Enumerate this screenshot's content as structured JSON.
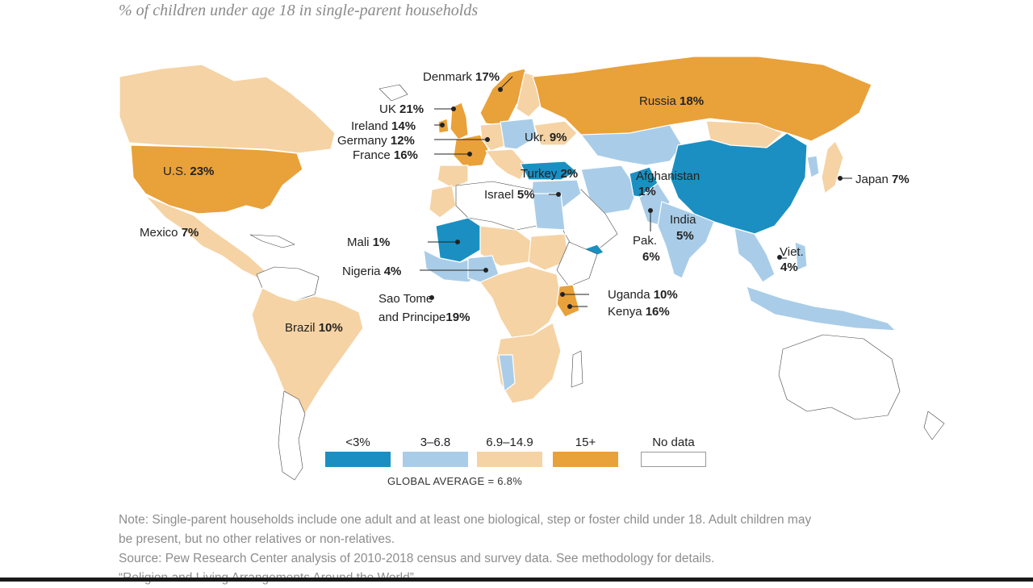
{
  "subtitle": "% of children under age 18 in single-parent households",
  "colors": {
    "lt3": "#1b8fc1",
    "3to6_8": "#a9cde8",
    "6_9to14_9": "#f5d3a4",
    "15plus": "#e9a13a",
    "nodata": "#ffffff",
    "border": "#ffffff"
  },
  "legend": [
    {
      "label": "<3%",
      "color": "#1b8fc1"
    },
    {
      "label": "3–6.8",
      "color": "#a9cde8"
    },
    {
      "label": "6.9–14.9",
      "color": "#f5d3a4"
    },
    {
      "label": "15+",
      "color": "#e9a13a"
    },
    {
      "label": "No data",
      "color": "#ffffff"
    }
  ],
  "global_average": "GLOBAL AVERAGE = 6.8%",
  "labels": {
    "denmark": {
      "name": "Denmark",
      "value": "17%"
    },
    "uk": {
      "name": "UK",
      "value": "21%"
    },
    "ireland": {
      "name": "Ireland",
      "value": "14%"
    },
    "germany": {
      "name": "Germany",
      "value": "12%"
    },
    "france": {
      "name": "France",
      "value": "16%"
    },
    "russia": {
      "name": "Russia",
      "value": "18%"
    },
    "ukraine": {
      "name": "Ukr.",
      "value": "9%"
    },
    "turkey": {
      "name": "Turkey",
      "value": "2%"
    },
    "israel": {
      "name": "Israel",
      "value": "5%"
    },
    "afghanistan": {
      "name": "Afghanistan",
      "value": "1%"
    },
    "japan": {
      "name": "Japan",
      "value": "7%"
    },
    "us": {
      "name": "U.S.",
      "value": "23%"
    },
    "mexico": {
      "name": "Mexico",
      "value": "7%"
    },
    "mali": {
      "name": "Mali",
      "value": "1%"
    },
    "nigeria": {
      "name": "Nigeria",
      "value": "4%"
    },
    "india": {
      "name": "India",
      "value": "5%"
    },
    "pakistan": {
      "name": "Pak.",
      "value": "6%"
    },
    "vietnam": {
      "name": "Viet.",
      "value": "4%"
    },
    "sao_tome": {
      "name_line1": "Sao Tome",
      "name_line2": "and Principe",
      "value": "19%"
    },
    "uganda": {
      "name": "Uganda",
      "value": "10%"
    },
    "kenya": {
      "name": "Kenya",
      "value": "16%"
    },
    "brazil": {
      "name": "Brazil",
      "value": "10%"
    }
  },
  "note_line1": "Note: Single-parent households include one adult and at least one biological, step or foster child under 18. Adult children may",
  "note_line2": "be present, but no other relatives or non-relatives.",
  "source": "Source: Pew Research Center analysis of 2010-2018 census and survey data. See methodology for details.",
  "report": "“Religion and Living Arrangements Around the World”"
}
